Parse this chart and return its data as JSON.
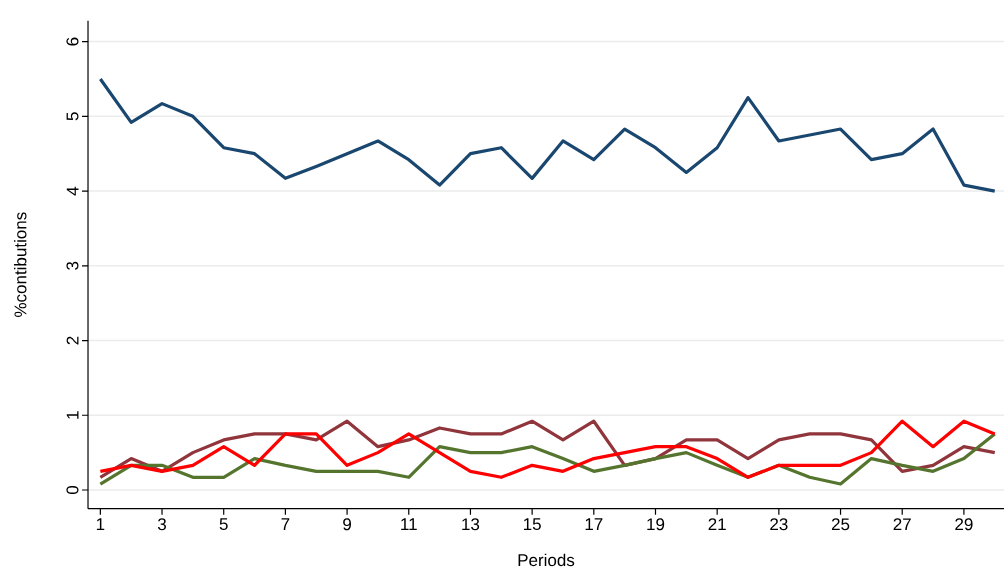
{
  "chart_data": {
    "type": "line",
    "xlabel": "Periods",
    "ylabel": "%contibutions",
    "x": [
      1,
      2,
      3,
      4,
      5,
      6,
      7,
      8,
      9,
      10,
      11,
      12,
      13,
      14,
      15,
      16,
      17,
      18,
      19,
      20,
      21,
      22,
      23,
      24,
      25,
      26,
      27,
      28,
      29,
      30
    ],
    "series": [
      {
        "color": "#1a476f",
        "values": [
          5.5,
          4.92,
          5.17,
          5.0,
          4.58,
          4.5,
          4.17,
          4.33,
          4.5,
          4.67,
          4.42,
          4.08,
          4.5,
          4.58,
          4.17,
          4.67,
          4.42,
          4.83,
          4.58,
          4.25,
          4.58,
          5.25,
          4.67,
          4.75,
          4.83,
          4.42,
          4.5,
          4.83,
          4.08,
          4.0
        ]
      },
      {
        "color": "#90353b",
        "values": [
          0.17,
          0.42,
          0.25,
          0.5,
          0.67,
          0.75,
          0.75,
          0.67,
          0.92,
          0.58,
          0.67,
          0.83,
          0.75,
          0.75,
          0.92,
          0.67,
          0.92,
          0.33,
          0.42,
          0.67,
          0.67,
          0.42,
          0.67,
          0.75,
          0.75,
          0.67,
          0.25,
          0.33,
          0.58,
          0.5
        ]
      },
      {
        "color": "#55752f",
        "values": [
          0.08,
          0.33,
          0.33,
          0.17,
          0.17,
          0.42,
          0.33,
          0.25,
          0.25,
          0.25,
          0.17,
          0.58,
          0.5,
          0.5,
          0.58,
          0.42,
          0.25,
          0.33,
          0.42,
          0.5,
          0.33,
          0.17,
          0.33,
          0.17,
          0.08,
          0.42,
          0.33,
          0.25,
          0.42,
          0.75
        ]
      },
      {
        "color": "#ff0000",
        "values": [
          0.25,
          0.33,
          0.25,
          0.33,
          0.58,
          0.33,
          0.75,
          0.75,
          0.33,
          0.5,
          0.75,
          0.5,
          0.25,
          0.17,
          0.33,
          0.25,
          0.42,
          0.5,
          0.58,
          0.58,
          0.42,
          0.17,
          0.33,
          0.33,
          0.33,
          0.5,
          0.92,
          0.58,
          0.92,
          0.75
        ]
      }
    ],
    "xlim": [
      0.6,
      30.3
    ],
    "ylim": [
      -0.25,
      6.28
    ],
    "xticks": [
      1,
      3,
      5,
      7,
      9,
      11,
      13,
      15,
      17,
      19,
      21,
      23,
      25,
      27,
      29
    ],
    "yticks": [
      0,
      1,
      2,
      3,
      4,
      5,
      6
    ],
    "grid": "y",
    "marker": "none",
    "line_style": "solid"
  }
}
